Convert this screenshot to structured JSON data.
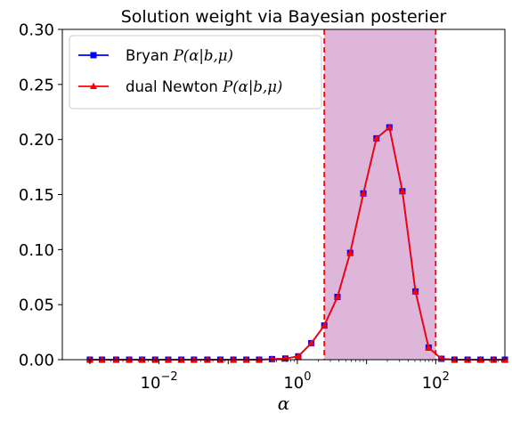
{
  "chart_data": {
    "type": "line",
    "title": "Solution weight via Bayesian posterier",
    "xlabel": "α",
    "ylabel": "",
    "xscale": "log",
    "xlim": [
      0.0004,
      1000
    ],
    "ylim": [
      0,
      0.3
    ],
    "grid": false,
    "legend_position": "top-left",
    "x_ticks": [
      {
        "value": 0.01,
        "label": "10",
        "exp": "−2"
      },
      {
        "value": 1,
        "label": "10",
        "exp": "0"
      },
      {
        "value": 100,
        "label": "10",
        "exp": "2"
      }
    ],
    "y_ticks": [
      {
        "value": 0.0,
        "label": "0.00"
      },
      {
        "value": 0.05,
        "label": "0.05"
      },
      {
        "value": 0.1,
        "label": "0.10"
      },
      {
        "value": 0.15,
        "label": "0.15"
      },
      {
        "value": 0.2,
        "label": "0.20"
      },
      {
        "value": 0.25,
        "label": "0.25"
      },
      {
        "value": 0.3,
        "label": "0.30"
      }
    ],
    "x": [
      0.001,
      0.0015,
      0.0024,
      0.0037,
      0.0057,
      0.0088,
      0.0136,
      0.021,
      0.032,
      0.05,
      0.077,
      0.119,
      0.183,
      0.28,
      0.43,
      0.67,
      1.03,
      1.59,
      2.45,
      3.8,
      5.8,
      9.0,
      13.9,
      21.4,
      33.0,
      51.0,
      79.0,
      121.0,
      187.0,
      289.0,
      445.0,
      687.0,
      1000.0
    ],
    "series": [
      {
        "name": "Bryan P(α|b,μ)",
        "name_prefix": "Bryan ",
        "name_math": "P(α|b,μ)",
        "color": "#0000ff",
        "marker": "square",
        "values": [
          0,
          0,
          0,
          0,
          0,
          0,
          0,
          0,
          0,
          0,
          0,
          0,
          0,
          0,
          0.0005,
          0.001,
          0.003,
          0.015,
          0.031,
          0.057,
          0.097,
          0.151,
          0.201,
          0.211,
          0.153,
          0.062,
          0.011,
          0.0008,
          0,
          0,
          0,
          0,
          0
        ]
      },
      {
        "name": "dual Newton P(α|b,μ)",
        "name_prefix": "dual Newton ",
        "name_math": "P(α|b,μ)",
        "color": "#ff0000",
        "marker": "triangle",
        "values": [
          0,
          0,
          0,
          0,
          0,
          0,
          0,
          0,
          0,
          0,
          0,
          0,
          0,
          0,
          0.0005,
          0.001,
          0.003,
          0.015,
          0.031,
          0.057,
          0.097,
          0.151,
          0.201,
          0.211,
          0.153,
          0.062,
          0.011,
          0.0008,
          0,
          0,
          0,
          0,
          0
        ]
      }
    ],
    "shaded_region": {
      "x_range": [
        2.45,
        100
      ],
      "fill_color": "#ddb6da",
      "edge_color": "#ff0000",
      "edge_style": "dashed"
    }
  }
}
